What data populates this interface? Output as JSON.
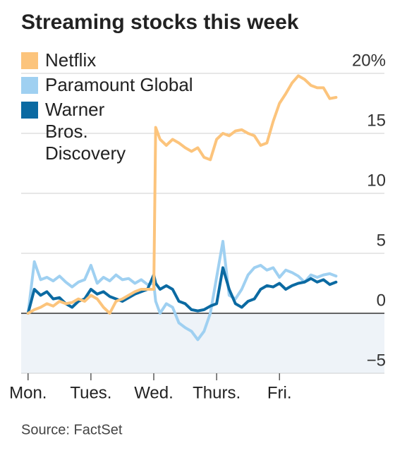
{
  "chart_data": {
    "type": "line",
    "title": "Streaming stocks this week",
    "source": "Source: FactSet",
    "x": [
      0,
      0.1,
      0.2,
      0.3,
      0.4,
      0.5,
      0.6,
      0.7,
      0.8,
      0.9,
      1.0,
      1.1,
      1.2,
      1.3,
      1.4,
      1.5,
      1.6,
      1.7,
      1.8,
      1.9,
      2.0,
      2.03,
      2.1,
      2.2,
      2.3,
      2.4,
      2.5,
      2.6,
      2.7,
      2.8,
      2.9,
      3.0,
      3.1,
      3.2,
      3.3,
      3.4,
      3.5,
      3.6,
      3.7,
      3.8,
      3.9,
      4.0,
      4.1,
      4.2,
      4.3,
      4.4,
      4.5,
      4.6,
      4.7,
      4.8,
      4.9
    ],
    "series": [
      {
        "name": "Netflix",
        "color": "#fcc47c",
        "values": [
          0,
          0.3,
          0.5,
          0.8,
          0.6,
          1,
          0.8,
          0.9,
          1.2,
          1,
          1.5,
          1.2,
          0.5,
          0,
          1,
          1.2,
          1.5,
          1.8,
          2,
          2,
          2,
          15.5,
          14.5,
          14,
          14.5,
          14.2,
          13.8,
          13.5,
          13.8,
          13,
          12.8,
          14.5,
          15,
          14.8,
          15.2,
          15.3,
          15,
          14.8,
          14,
          14.2,
          16,
          17.5,
          18.3,
          19.2,
          19.8,
          19.5,
          19,
          18.8,
          18.8,
          17.9,
          18
        ]
      },
      {
        "name": "Paramount Global",
        "color": "#9fd0f1",
        "values": [
          0,
          4.3,
          2.8,
          3,
          2.7,
          3.1,
          2.6,
          2.2,
          2.6,
          2.8,
          4,
          2.5,
          3,
          2.7,
          3.2,
          2.8,
          2.9,
          2.5,
          2.8,
          2.4,
          2.5,
          1,
          0,
          0.8,
          0.5,
          -0.8,
          -1.2,
          -1.5,
          -2.2,
          -1.5,
          0,
          3,
          6,
          1.5,
          1.2,
          2,
          3.2,
          3.8,
          4,
          3.6,
          3.8,
          3,
          3.6,
          3.4,
          3.1,
          2.6,
          3.2,
          3,
          3.2,
          3.3,
          3.1
        ]
      },
      {
        "name": "Warner Bros. Discovery",
        "color": "#0b6aa2",
        "values": [
          0,
          2,
          1.5,
          1.8,
          1.2,
          1.3,
          0.8,
          0.5,
          1,
          1.2,
          2,
          1.6,
          1.8,
          1.4,
          1.2,
          1,
          1.3,
          1.6,
          1.8,
          2,
          3.2,
          2.5,
          2,
          2.3,
          2,
          1,
          0.8,
          0.3,
          0.2,
          0.3,
          0.6,
          0.8,
          3.8,
          2,
          0.8,
          0.5,
          1,
          1.2,
          2,
          2.3,
          2.2,
          2.5,
          2,
          2.3,
          2.5,
          2.6,
          2.9,
          2.6,
          2.8,
          2.4,
          2.6
        ]
      }
    ],
    "xlim": [
      -0.11,
      5.67
    ],
    "xticks": [
      {
        "value": 0,
        "label": "Mon."
      },
      {
        "value": 1,
        "label": "Tues."
      },
      {
        "value": 2,
        "label": "Wed."
      },
      {
        "value": 3,
        "label": "Thurs."
      },
      {
        "value": 4,
        "label": "Fri."
      }
    ],
    "ylim": [
      -5,
      20
    ],
    "yticks": [
      {
        "value": 20,
        "label": "20%"
      },
      15,
      10,
      5,
      0,
      {
        "value": -5,
        "label": "−5"
      }
    ],
    "grid": true,
    "legend": "top-left"
  }
}
